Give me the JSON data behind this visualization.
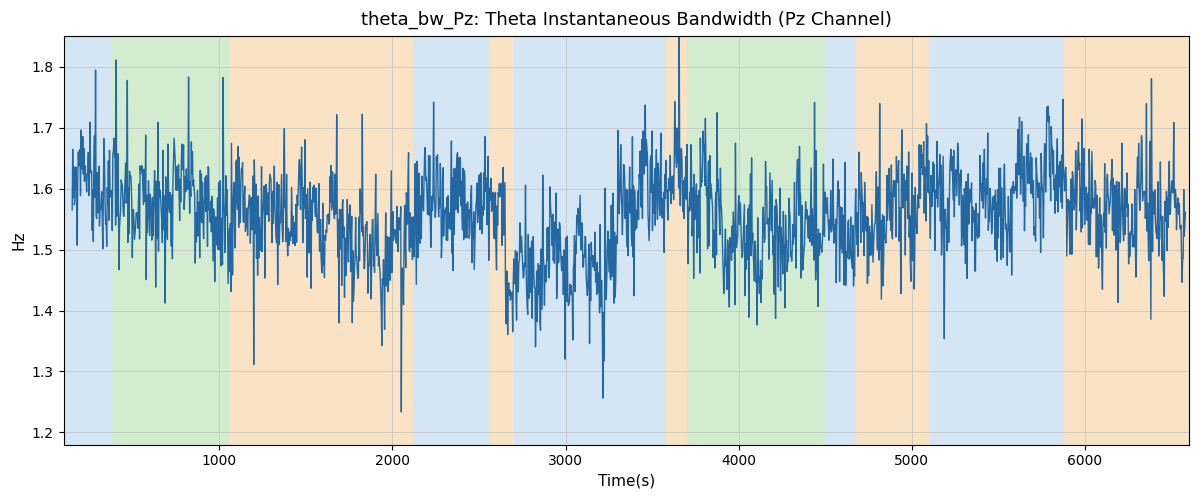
{
  "title": "theta_bw_Pz: Theta Instantaneous Bandwidth (Pz Channel)",
  "xlabel": "Time(s)",
  "ylabel": "Hz",
  "xlim": [
    100,
    6600
  ],
  "ylim": [
    1.18,
    1.85
  ],
  "line_color": "#2368a2",
  "line_width": 1.0,
  "background_color": "#ffffff",
  "grid_color": "#c0c0c0",
  "title_fontsize": 13,
  "label_fontsize": 11,
  "seed": 99,
  "regions": [
    {
      "xmin": 100,
      "xmax": 380,
      "color": "#aacce8",
      "alpha": 0.5
    },
    {
      "xmin": 380,
      "xmax": 1060,
      "color": "#a8d8a0",
      "alpha": 0.5
    },
    {
      "xmin": 1060,
      "xmax": 2120,
      "color": "#f5c98a",
      "alpha": 0.5
    },
    {
      "xmin": 2120,
      "xmax": 2560,
      "color": "#aacce8",
      "alpha": 0.5
    },
    {
      "xmin": 2560,
      "xmax": 2700,
      "color": "#f5c98a",
      "alpha": 0.5
    },
    {
      "xmin": 2700,
      "xmax": 3580,
      "color": "#aacce8",
      "alpha": 0.5
    },
    {
      "xmin": 3580,
      "xmax": 3700,
      "color": "#f5c98a",
      "alpha": 0.5
    },
    {
      "xmin": 3700,
      "xmax": 4500,
      "color": "#a8d8a0",
      "alpha": 0.5
    },
    {
      "xmin": 4500,
      "xmax": 4680,
      "color": "#aacce8",
      "alpha": 0.5
    },
    {
      "xmin": 4680,
      "xmax": 5100,
      "color": "#f5c98a",
      "alpha": 0.5
    },
    {
      "xmin": 5100,
      "xmax": 5880,
      "color": "#aacce8",
      "alpha": 0.5
    },
    {
      "xmin": 5880,
      "xmax": 6600,
      "color": "#f5c98a",
      "alpha": 0.5
    }
  ]
}
